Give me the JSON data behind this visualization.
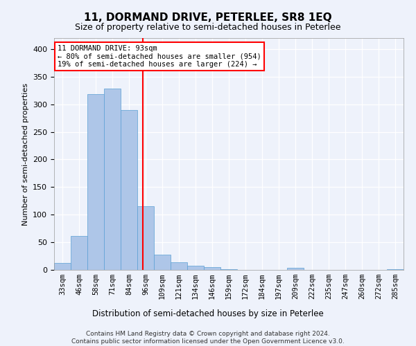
{
  "title": "11, DORMAND DRIVE, PETERLEE, SR8 1EQ",
  "subtitle": "Size of property relative to semi-detached houses in Peterlee",
  "xlabel": "Distribution of semi-detached houses by size in Peterlee",
  "ylabel": "Number of semi-detached properties",
  "categories": [
    "33sqm",
    "46sqm",
    "58sqm",
    "71sqm",
    "84sqm",
    "96sqm",
    "109sqm",
    "121sqm",
    "134sqm",
    "146sqm",
    "159sqm",
    "172sqm",
    "184sqm",
    "197sqm",
    "209sqm",
    "222sqm",
    "235sqm",
    "247sqm",
    "260sqm",
    "272sqm",
    "285sqm"
  ],
  "values": [
    13,
    61,
    319,
    328,
    289,
    115,
    28,
    14,
    7,
    5,
    1,
    0,
    0,
    0,
    4,
    0,
    0,
    0,
    0,
    0,
    1
  ],
  "bar_color": "#aec6e8",
  "bar_edge_color": "#5a9fd4",
  "vline_x": 4.85,
  "vline_color": "red",
  "annotation_text": "11 DORMAND DRIVE: 93sqm\n← 80% of semi-detached houses are smaller (954)\n19% of semi-detached houses are larger (224) →",
  "annotation_box_color": "white",
  "annotation_box_edge": "red",
  "ylim": [
    0,
    420
  ],
  "yticks": [
    0,
    50,
    100,
    150,
    200,
    250,
    300,
    350,
    400
  ],
  "footer": "Contains HM Land Registry data © Crown copyright and database right 2024.\nContains public sector information licensed under the Open Government Licence v3.0.",
  "background_color": "#eef2fb",
  "plot_background": "#eef2fb",
  "grid_color": "white"
}
